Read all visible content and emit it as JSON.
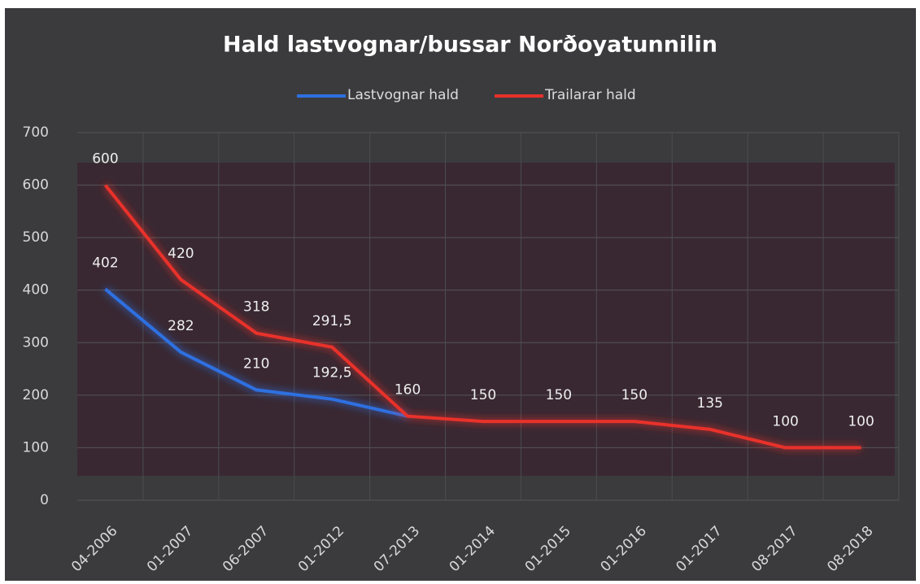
{
  "chart_data": {
    "type": "line",
    "title": "Hald lastvognar/bussar Norðoyatunnilin",
    "categories": [
      "04-2006",
      "01-2007",
      "06-2007",
      "01-2012",
      "07-2013",
      "01-2014",
      "01-2015",
      "01-2016",
      "01-2017",
      "08-2017",
      "08-2018"
    ],
    "series": [
      {
        "name": "Lastvognar hald",
        "color": "#2e6fe0",
        "values": [
          402,
          282,
          210,
          192.5,
          160,
          null,
          null,
          null,
          null,
          null,
          null
        ],
        "value_labels": [
          "402",
          "282",
          "210",
          "192,5",
          null,
          null,
          null,
          null,
          null,
          null,
          null
        ]
      },
      {
        "name": "Trailarar hald",
        "color": "#e8302a",
        "values": [
          600,
          420,
          318,
          291.5,
          160,
          150,
          150,
          150,
          135,
          100,
          100
        ],
        "value_labels": [
          "600",
          "420",
          "318",
          "291,5",
          "160",
          "150",
          "150",
          "150",
          "135",
          "100",
          "100"
        ]
      }
    ],
    "ylim": [
      0,
      700
    ],
    "yticks": [
      0,
      100,
      200,
      300,
      400,
      500,
      600,
      700
    ],
    "grid": true,
    "legend": "top"
  }
}
